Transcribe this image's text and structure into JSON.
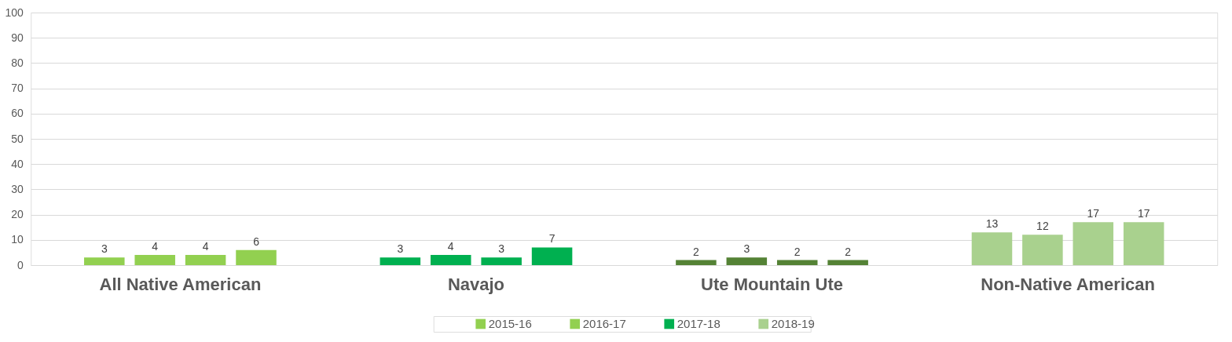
{
  "chart_data": {
    "type": "bar",
    "categories": [
      "All Native American",
      "Navajo",
      "Ute Mountain Ute",
      "Non-Native American"
    ],
    "series": [
      {
        "name": "2015-16",
        "color": "#92d050",
        "colors": [
          "#92d050",
          "#00b050",
          "#548235",
          "#a9d18e"
        ],
        "values": [
          3,
          3,
          2,
          13
        ]
      },
      {
        "name": "2016-17",
        "color": "#92d050",
        "colors": [
          "#92d050",
          "#00b050",
          "#548235",
          "#a9d18e"
        ],
        "values": [
          4,
          4,
          3,
          12
        ]
      },
      {
        "name": "2017-18",
        "color": "#00b050",
        "colors": [
          "#92d050",
          "#00b050",
          "#548235",
          "#a9d18e"
        ],
        "values": [
          4,
          3,
          2,
          17
        ]
      },
      {
        "name": "2018-19",
        "color": "#a9d18e",
        "colors": [
          "#92d050",
          "#00b050",
          "#548235",
          "#a9d18e"
        ],
        "values": [
          6,
          7,
          2,
          17
        ]
      }
    ],
    "ylim": [
      0,
      100
    ],
    "yticks": [
      0,
      10,
      20,
      30,
      40,
      50,
      60,
      70,
      80,
      90,
      100
    ],
    "grid": "y",
    "legend": "bottom",
    "data_labels": true
  }
}
